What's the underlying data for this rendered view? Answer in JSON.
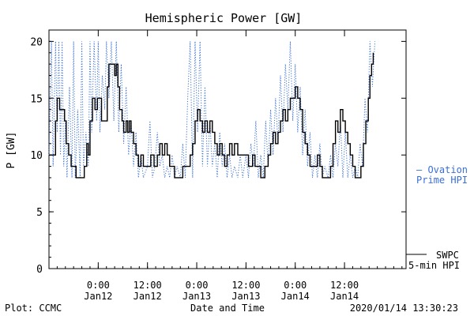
{
  "chart_data": {
    "type": "line",
    "title": "Hemispheric Power [GW]",
    "xlabel": "Date and Time",
    "ylabel": "P [GW]",
    "ylim": [
      0,
      21
    ],
    "y_ticks": [
      0,
      5,
      10,
      15,
      20
    ],
    "x_unit": "hours since 2020-01-11 12:00",
    "xlim": [
      0,
      43.5
    ],
    "x_ticks": [
      {
        "x": 6,
        "line1": "0:00",
        "line2": "Jan12"
      },
      {
        "x": 12,
        "line1": "12:00",
        "line2": "Jan12"
      },
      {
        "x": 18,
        "line1": "0:00",
        "line2": "Jan13"
      },
      {
        "x": 24,
        "line1": "12:00",
        "line2": "Jan13"
      },
      {
        "x": 30,
        "line1": "0:00",
        "line2": "Jan14"
      },
      {
        "x": 36,
        "line1": "12:00",
        "line2": "Jan14"
      }
    ],
    "series": [
      {
        "name": "SWPC 5-min HPI",
        "color": "#000000",
        "style": "step-solid",
        "points": [
          [
            0,
            10
          ],
          [
            0.5,
            10
          ],
          [
            0.8,
            13
          ],
          [
            1.0,
            15
          ],
          [
            1.3,
            14
          ],
          [
            1.6,
            14
          ],
          [
            1.9,
            13
          ],
          [
            2.1,
            11
          ],
          [
            2.4,
            10
          ],
          [
            2.7,
            9
          ],
          [
            3.0,
            9
          ],
          [
            3.3,
            8
          ],
          [
            4.0,
            8
          ],
          [
            4.3,
            9
          ],
          [
            4.6,
            11
          ],
          [
            4.8,
            10
          ],
          [
            5.0,
            13
          ],
          [
            5.3,
            15
          ],
          [
            5.6,
            14
          ],
          [
            5.9,
            15
          ],
          [
            6.2,
            15
          ],
          [
            6.4,
            13
          ],
          [
            6.8,
            13
          ],
          [
            7.1,
            16
          ],
          [
            7.3,
            18
          ],
          [
            7.8,
            18
          ],
          [
            8.0,
            17
          ],
          [
            8.2,
            18
          ],
          [
            8.4,
            16
          ],
          [
            8.6,
            14
          ],
          [
            8.9,
            13
          ],
          [
            9.1,
            12
          ],
          [
            9.4,
            13
          ],
          [
            9.6,
            12
          ],
          [
            9.8,
            13
          ],
          [
            10.0,
            12
          ],
          [
            10.3,
            11
          ],
          [
            10.6,
            10
          ],
          [
            10.9,
            9
          ],
          [
            11.2,
            10
          ],
          [
            11.5,
            9
          ],
          [
            12.0,
            9
          ],
          [
            12.4,
            10
          ],
          [
            12.8,
            9
          ],
          [
            13.2,
            10
          ],
          [
            13.5,
            11
          ],
          [
            13.8,
            10
          ],
          [
            14.1,
            11
          ],
          [
            14.4,
            10
          ],
          [
            14.7,
            9
          ],
          [
            15.0,
            9
          ],
          [
            15.3,
            8
          ],
          [
            16.0,
            8
          ],
          [
            16.3,
            9
          ],
          [
            16.8,
            9
          ],
          [
            17.2,
            10
          ],
          [
            17.5,
            11
          ],
          [
            17.8,
            13
          ],
          [
            18.1,
            14
          ],
          [
            18.4,
            13
          ],
          [
            18.7,
            12
          ],
          [
            19.0,
            13
          ],
          [
            19.3,
            12
          ],
          [
            19.6,
            13
          ],
          [
            19.9,
            12
          ],
          [
            20.2,
            11
          ],
          [
            20.5,
            10
          ],
          [
            20.8,
            11
          ],
          [
            21.1,
            10
          ],
          [
            21.4,
            9
          ],
          [
            21.7,
            10
          ],
          [
            22.0,
            11
          ],
          [
            22.3,
            10
          ],
          [
            22.6,
            11
          ],
          [
            23.0,
            10
          ],
          [
            24.0,
            10
          ],
          [
            24.3,
            9
          ],
          [
            24.8,
            10
          ],
          [
            25.1,
            9
          ],
          [
            25.5,
            9
          ],
          [
            25.8,
            8
          ],
          [
            26.3,
            9
          ],
          [
            26.7,
            10
          ],
          [
            27.0,
            11
          ],
          [
            27.3,
            12
          ],
          [
            27.6,
            11
          ],
          [
            27.9,
            12
          ],
          [
            28.2,
            13
          ],
          [
            28.5,
            14
          ],
          [
            28.8,
            13
          ],
          [
            29.1,
            14
          ],
          [
            29.4,
            15
          ],
          [
            29.7,
            15
          ],
          [
            30.0,
            16
          ],
          [
            30.3,
            15
          ],
          [
            30.6,
            14
          ],
          [
            30.9,
            12
          ],
          [
            31.2,
            11
          ],
          [
            31.5,
            10
          ],
          [
            31.8,
            9
          ],
          [
            32.4,
            9
          ],
          [
            32.7,
            10
          ],
          [
            33.0,
            9
          ],
          [
            33.3,
            8
          ],
          [
            34.0,
            8
          ],
          [
            34.3,
            9
          ],
          [
            34.6,
            11
          ],
          [
            34.9,
            13
          ],
          [
            35.2,
            12
          ],
          [
            35.5,
            14
          ],
          [
            35.8,
            13
          ],
          [
            36.1,
            12
          ],
          [
            36.4,
            11
          ],
          [
            36.7,
            10
          ],
          [
            37.0,
            9
          ],
          [
            37.3,
            8
          ],
          [
            37.8,
            8
          ],
          [
            38.0,
            9
          ],
          [
            38.3,
            11
          ],
          [
            38.6,
            13
          ],
          [
            38.9,
            15
          ],
          [
            39.1,
            17
          ],
          [
            39.3,
            18
          ],
          [
            39.5,
            19
          ]
        ]
      },
      {
        "name": "Ovation Prime HPI",
        "color": "#3a6fd8",
        "style": "dotted",
        "points": [
          [
            0,
            10
          ],
          [
            0.3,
            20
          ],
          [
            0.5,
            9
          ],
          [
            0.8,
            20
          ],
          [
            1.0,
            12
          ],
          [
            1.2,
            20
          ],
          [
            1.4,
            10
          ],
          [
            1.6,
            20
          ],
          [
            1.8,
            9
          ],
          [
            2.0,
            13
          ],
          [
            2.2,
            8
          ],
          [
            2.5,
            16
          ],
          [
            2.8,
            8
          ],
          [
            3.0,
            20
          ],
          [
            3.2,
            8
          ],
          [
            3.5,
            14
          ],
          [
            3.8,
            8
          ],
          [
            4.0,
            20
          ],
          [
            4.2,
            9
          ],
          [
            4.5,
            12
          ],
          [
            4.8,
            9
          ],
          [
            5.0,
            20
          ],
          [
            5.2,
            12
          ],
          [
            5.5,
            20
          ],
          [
            5.8,
            13
          ],
          [
            6.0,
            20
          ],
          [
            6.2,
            12
          ],
          [
            6.5,
            17
          ],
          [
            6.8,
            14
          ],
          [
            7.0,
            20
          ],
          [
            7.3,
            15
          ],
          [
            7.6,
            20
          ],
          [
            7.9,
            13
          ],
          [
            8.2,
            20
          ],
          [
            8.5,
            12
          ],
          [
            8.8,
            18
          ],
          [
            9.1,
            11
          ],
          [
            9.4,
            16
          ],
          [
            9.7,
            10
          ],
          [
            10.0,
            13
          ],
          [
            10.3,
            9
          ],
          [
            10.6,
            12
          ],
          [
            10.9,
            8
          ],
          [
            11.2,
            10
          ],
          [
            11.5,
            8
          ],
          [
            12.0,
            9
          ],
          [
            12.3,
            13
          ],
          [
            12.6,
            8
          ],
          [
            12.9,
            9
          ],
          [
            13.2,
            12
          ],
          [
            13.5,
            9
          ],
          [
            13.8,
            10
          ],
          [
            14.1,
            8
          ],
          [
            14.4,
            9
          ],
          [
            14.7,
            8
          ],
          [
            15.0,
            10
          ],
          [
            15.3,
            8
          ],
          [
            15.6,
            9
          ],
          [
            16.0,
            8
          ],
          [
            16.3,
            11
          ],
          [
            16.6,
            8
          ],
          [
            16.9,
            15
          ],
          [
            17.2,
            20
          ],
          [
            17.5,
            8
          ],
          [
            17.8,
            20
          ],
          [
            18.1,
            12
          ],
          [
            18.4,
            20
          ],
          [
            18.7,
            9
          ],
          [
            19.0,
            16
          ],
          [
            19.3,
            9
          ],
          [
            19.6,
            13
          ],
          [
            19.9,
            9
          ],
          [
            20.2,
            11
          ],
          [
            20.5,
            8
          ],
          [
            20.8,
            12
          ],
          [
            21.1,
            9
          ],
          [
            21.4,
            11
          ],
          [
            21.7,
            8
          ],
          [
            22.0,
            10
          ],
          [
            22.3,
            8
          ],
          [
            22.6,
            9
          ],
          [
            23.0,
            8
          ],
          [
            23.3,
            10
          ],
          [
            23.6,
            8
          ],
          [
            24.0,
            10
          ],
          [
            24.3,
            8
          ],
          [
            24.6,
            11
          ],
          [
            24.9,
            9
          ],
          [
            25.2,
            13
          ],
          [
            25.5,
            8
          ],
          [
            25.8,
            10
          ],
          [
            26.1,
            8
          ],
          [
            26.4,
            13
          ],
          [
            26.7,
            9
          ],
          [
            27.0,
            14
          ],
          [
            27.3,
            10
          ],
          [
            27.6,
            15
          ],
          [
            27.9,
            11
          ],
          [
            28.2,
            17
          ],
          [
            28.5,
            12
          ],
          [
            28.8,
            18
          ],
          [
            29.1,
            14
          ],
          [
            29.4,
            20
          ],
          [
            29.7,
            13
          ],
          [
            30.0,
            18
          ],
          [
            30.3,
            12
          ],
          [
            30.6,
            16
          ],
          [
            30.9,
            10
          ],
          [
            31.2,
            14
          ],
          [
            31.5,
            9
          ],
          [
            31.8,
            12
          ],
          [
            32.1,
            8
          ],
          [
            32.4,
            10
          ],
          [
            32.7,
            8
          ],
          [
            33.0,
            11
          ],
          [
            33.3,
            8
          ],
          [
            33.6,
            9
          ],
          [
            34.0,
            8
          ],
          [
            34.3,
            10
          ],
          [
            34.6,
            8
          ],
          [
            34.9,
            11
          ],
          [
            35.2,
            9
          ],
          [
            35.5,
            13
          ],
          [
            35.8,
            8
          ],
          [
            36.1,
            12
          ],
          [
            36.4,
            8
          ],
          [
            36.7,
            10
          ],
          [
            37.0,
            8
          ],
          [
            37.3,
            9
          ],
          [
            37.6,
            8
          ],
          [
            37.9,
            11
          ],
          [
            38.2,
            9
          ],
          [
            38.5,
            15
          ],
          [
            38.8,
            12
          ],
          [
            39.1,
            20
          ],
          [
            39.4,
            16
          ],
          [
            39.7,
            20
          ]
        ]
      }
    ],
    "legend": [
      {
        "series": "Ovation Prime HPI",
        "line1": "— Ovation",
        "line2": "Prime HPI",
        "color": "#3a6fd8"
      },
      {
        "series": "SWPC 5-min HPI",
        "line1": "SWPC",
        "line2": "5-min HPI",
        "color": "#000000"
      }
    ],
    "legend_placement": "right"
  },
  "footer": {
    "left": "Plot: CCMC",
    "center": "Date and Time",
    "right": "2020/01/14 13:30:23"
  }
}
